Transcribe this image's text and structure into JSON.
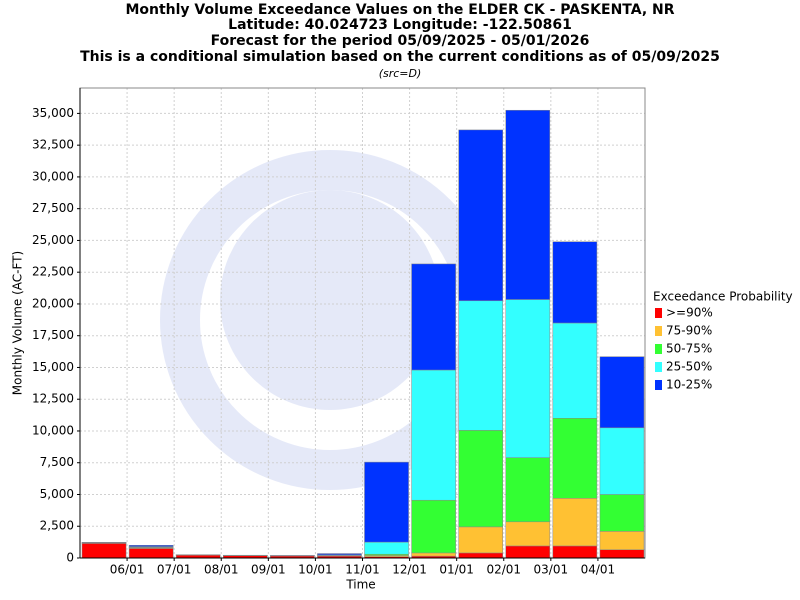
{
  "chart_data": {
    "type": "stacked_bar",
    "title": "Monthly Volume Exceedance Values on the ELDER CK - PASKENTA, NR",
    "subtitle_lines": [
      "Latitude: 40.024723 Longitude: -122.50861",
      "Forecast for the period 05/09/2025 - 05/01/2026",
      "This is a conditional simulation based on the current conditions as of 05/09/2025"
    ],
    "note": "(src=D)",
    "x_label": "Time",
    "y_label": "Monthly Volume (AC-FT)",
    "legend_title": "Exceedance Probability",
    "xticks": [
      "06/01",
      "07/01",
      "08/01",
      "09/01",
      "10/01",
      "11/01",
      "12/01",
      "01/01",
      "02/01",
      "03/01",
      "04/01"
    ],
    "ylim": [
      0,
      37000
    ],
    "yticks": [
      0,
      {
        "value": 2500,
        "label": "2,500"
      },
      {
        "value": 5000,
        "label": "5,000"
      },
      {
        "value": 7500,
        "label": "7,500"
      },
      {
        "value": 10000,
        "label": "10,000"
      },
      {
        "value": 12500,
        "label": "12,500"
      },
      {
        "value": 15000,
        "label": "15,000"
      },
      {
        "value": 17500,
        "label": "17,500"
      },
      {
        "value": 20000,
        "label": "20,000"
      },
      {
        "value": 22500,
        "label": "22,500"
      },
      {
        "value": 25000,
        "label": "25,000"
      },
      {
        "value": 27500,
        "label": "27,500"
      },
      {
        "value": 30000,
        "label": "30,000"
      },
      {
        "value": 32500,
        "label": "32,500"
      },
      {
        "value": 35000,
        "label": "35,000"
      }
    ],
    "grid": true,
    "series": [
      {
        "name": ">=90%",
        "color": "#ff0000",
        "values": [
          1150,
          750,
          220,
          180,
          160,
          150,
          100,
          150,
          400,
          950,
          950,
          650
        ]
      },
      {
        "name": "75-90%",
        "color": "#ffc133",
        "values": [
          20,
          50,
          10,
          10,
          10,
          20,
          100,
          250,
          2050,
          1900,
          3750,
          1450
        ]
      },
      {
        "name": "50-75%",
        "color": "#33ff33",
        "values": [
          20,
          50,
          10,
          10,
          10,
          30,
          100,
          4150,
          7600,
          5050,
          6300,
          2900
        ]
      },
      {
        "name": "25-50%",
        "color": "#33ffff",
        "values": [
          20,
          50,
          10,
          10,
          10,
          50,
          950,
          10250,
          10200,
          12450,
          7500,
          5250
        ]
      },
      {
        "name": "10-25%",
        "color": "#0033ff",
        "values": [
          30,
          100,
          10,
          10,
          10,
          100,
          6300,
          8350,
          13450,
          14900,
          6400,
          5600
        ]
      }
    ]
  }
}
